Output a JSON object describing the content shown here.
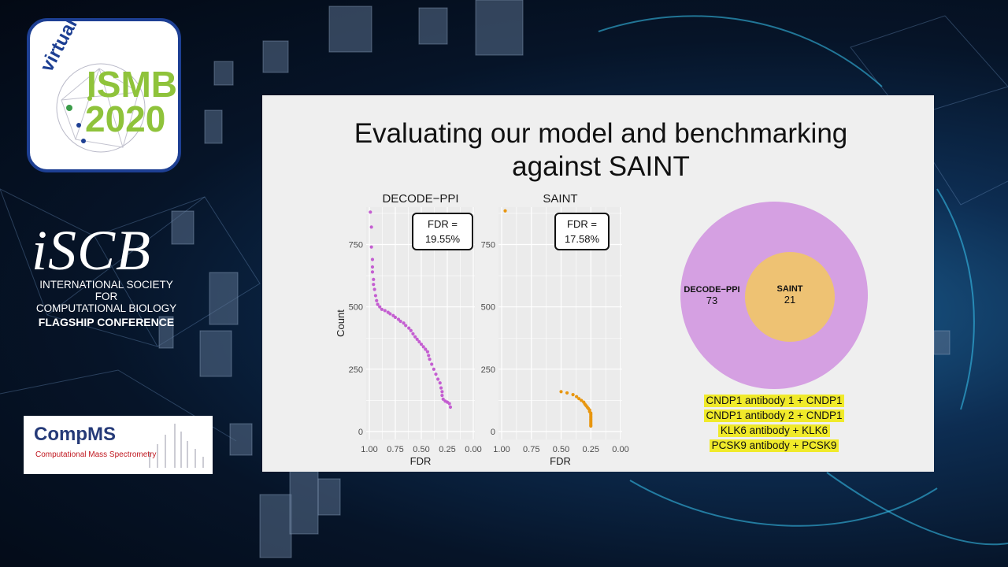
{
  "conference": {
    "ismb_virtual": "virtual",
    "ismb_name": "ISMB",
    "ismb_year": "2020",
    "iscb_logo": "iSCB",
    "iscb_line1": "INTERNATIONAL SOCIETY FOR",
    "iscb_line2": "COMPUTATIONAL BIOLOGY",
    "iscb_line3": "FLAGSHIP CONFERENCE",
    "compms_title": "CompMS",
    "compms_subtitle": "Computational Mass Spectrometry"
  },
  "slide": {
    "title_line1": "Evaluating our model and benchmarking",
    "title_line2": "against SAINT",
    "annotations": [
      "CNDP1 antibody 1 + CNDP1",
      "CNDP1 antibody 2 + CNDP1",
      "KLK6 antibody + KLK6",
      "PCSK9 antibody + PCSK9"
    ]
  },
  "chart_data": [
    {
      "type": "scatter",
      "title": "DECODE−PPI",
      "xlabel": "FDR",
      "ylabel": "Count",
      "xlim": [
        1.0,
        0.0
      ],
      "ylim": [
        0,
        900
      ],
      "xticks": [
        "1.00",
        "0.75",
        "0.50",
        "0.25",
        "0.00"
      ],
      "yticks": [
        "0",
        "250",
        "500",
        "750"
      ],
      "color": "#c45ed1",
      "annotation": [
        "FDR =",
        "19.55%"
      ],
      "grid": true,
      "points": [
        [
          0.99,
          880
        ],
        [
          0.98,
          820
        ],
        [
          0.98,
          740
        ],
        [
          0.97,
          690
        ],
        [
          0.97,
          660
        ],
        [
          0.97,
          640
        ],
        [
          0.96,
          610
        ],
        [
          0.96,
          590
        ],
        [
          0.95,
          570
        ],
        [
          0.94,
          545
        ],
        [
          0.93,
          525
        ],
        [
          0.92,
          510
        ],
        [
          0.9,
          500
        ],
        [
          0.88,
          490
        ],
        [
          0.85,
          485
        ],
        [
          0.82,
          478
        ],
        [
          0.8,
          472
        ],
        [
          0.77,
          465
        ],
        [
          0.75,
          458
        ],
        [
          0.72,
          450
        ],
        [
          0.7,
          442
        ],
        [
          0.67,
          435
        ],
        [
          0.65,
          425
        ],
        [
          0.62,
          415
        ],
        [
          0.6,
          405
        ],
        [
          0.58,
          392
        ],
        [
          0.56,
          380
        ],
        [
          0.54,
          370
        ],
        [
          0.52,
          360
        ],
        [
          0.5,
          350
        ],
        [
          0.48,
          340
        ],
        [
          0.46,
          330
        ],
        [
          0.44,
          320
        ],
        [
          0.43,
          305
        ],
        [
          0.42,
          290
        ],
        [
          0.4,
          270
        ],
        [
          0.38,
          250
        ],
        [
          0.36,
          230
        ],
        [
          0.34,
          210
        ],
        [
          0.32,
          195
        ],
        [
          0.31,
          175
        ],
        [
          0.3,
          160
        ],
        [
          0.3,
          145
        ],
        [
          0.29,
          130
        ],
        [
          0.27,
          122
        ],
        [
          0.25,
          118
        ],
        [
          0.23,
          112
        ],
        [
          0.22,
          98
        ]
      ]
    },
    {
      "type": "scatter",
      "title": "SAINT",
      "xlabel": "FDR",
      "ylabel": "",
      "xlim": [
        1.0,
        0.0
      ],
      "ylim": [
        0,
        900
      ],
      "xticks": [
        "1.00",
        "0.75",
        "0.50",
        "0.25",
        "0.00"
      ],
      "yticks": [
        "0",
        "250",
        "500",
        "750"
      ],
      "color": "#e8960f",
      "annotation": [
        "FDR =",
        "17.58%"
      ],
      "grid": true,
      "points": [
        [
          0.97,
          885
        ],
        [
          0.5,
          160
        ],
        [
          0.45,
          155
        ],
        [
          0.4,
          148
        ],
        [
          0.37,
          140
        ],
        [
          0.35,
          132
        ],
        [
          0.33,
          125
        ],
        [
          0.31,
          118
        ],
        [
          0.3,
          110
        ],
        [
          0.29,
          104
        ],
        [
          0.28,
          98
        ],
        [
          0.27,
          92
        ],
        [
          0.26,
          86
        ],
        [
          0.26,
          80
        ],
        [
          0.25,
          74
        ],
        [
          0.25,
          68
        ],
        [
          0.25,
          62
        ],
        [
          0.25,
          56
        ],
        [
          0.25,
          50
        ],
        [
          0.25,
          44
        ],
        [
          0.25,
          38
        ],
        [
          0.25,
          32
        ],
        [
          0.25,
          26
        ],
        [
          0.25,
          22
        ]
      ]
    },
    {
      "type": "venn",
      "sets": [
        {
          "name": "DECODE−PPI",
          "count": "73",
          "color": "#d5a0e2"
        },
        {
          "name": "SAINT",
          "count": "21",
          "color": "#eec273"
        }
      ]
    }
  ]
}
